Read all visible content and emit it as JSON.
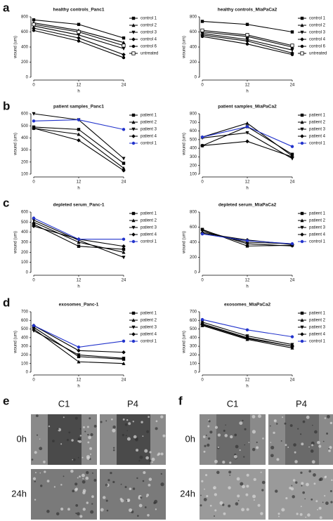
{
  "panel_labels": [
    "a",
    "b",
    "c",
    "d",
    "e",
    "f"
  ],
  "chart_data": [
    {
      "type": "line",
      "title": "healthy controls_Panc1",
      "x_label": "h",
      "y_label": "wound (um)",
      "x": [
        0,
        12,
        24
      ],
      "xlim": [
        0,
        24
      ],
      "xticks": [
        0,
        12,
        24
      ],
      "ylim": [
        0,
        800
      ],
      "yticks": [
        0,
        200,
        400,
        600,
        800
      ],
      "series": [
        {
          "name": "control 1",
          "color": "#000000",
          "values": [
            760,
            700,
            520
          ]
        },
        {
          "name": "control 2",
          "color": "#000000",
          "values": [
            720,
            620,
            460
          ]
        },
        {
          "name": "control 3",
          "color": "#000000",
          "values": [
            680,
            560,
            380
          ]
        },
        {
          "name": "control 4",
          "color": "#000000",
          "values": [
            650,
            520,
            300
          ]
        },
        {
          "name": "control 6",
          "color": "#000000",
          "values": [
            620,
            480,
            260
          ]
        },
        {
          "name": "untreated",
          "color": "#000000",
          "values": [
            700,
            600,
            420
          ]
        }
      ]
    },
    {
      "type": "line",
      "title": "healthy controls_MiaPaCa2",
      "x_label": "h",
      "y_label": "wound (um)",
      "x": [
        0,
        12,
        24
      ],
      "xlim": [
        0,
        24
      ],
      "xticks": [
        0,
        12,
        24
      ],
      "ylim": [
        0,
        800
      ],
      "yticks": [
        0,
        200,
        400,
        600,
        800
      ],
      "series": [
        {
          "name": "control 1",
          "color": "#000000",
          "values": [
            740,
            700,
            600
          ]
        },
        {
          "name": "control 2",
          "color": "#000000",
          "values": [
            600,
            540,
            400
          ]
        },
        {
          "name": "control 3",
          "color": "#000000",
          "values": [
            580,
            500,
            360
          ]
        },
        {
          "name": "control 4",
          "color": "#000000",
          "values": [
            560,
            480,
            320
          ]
        },
        {
          "name": "control 6",
          "color": "#000000",
          "values": [
            540,
            440,
            300
          ]
        },
        {
          "name": "untreated",
          "color": "#000000",
          "values": [
            620,
            560,
            420
          ]
        }
      ]
    },
    {
      "type": "line",
      "title": "patient samples_Panc1",
      "x_label": "h",
      "y_label": "wound (um)",
      "x": [
        0,
        12,
        24
      ],
      "xlim": [
        0,
        24
      ],
      "xticks": [
        0,
        12,
        24
      ],
      "ylim": [
        100,
        600
      ],
      "yticks": [
        100,
        200,
        300,
        400,
        500,
        600
      ],
      "series": [
        {
          "name": "patient 1",
          "color": "#000000",
          "values": [
            490,
            470,
            190
          ]
        },
        {
          "name": "patient 2",
          "color": "#000000",
          "values": [
            480,
            430,
            150
          ]
        },
        {
          "name": "patient 3",
          "color": "#000000",
          "values": [
            600,
            550,
            230
          ]
        },
        {
          "name": "patient 4",
          "color": "#000000",
          "values": [
            480,
            380,
            130
          ]
        },
        {
          "name": "control 1",
          "color": "#2233cc",
          "values": [
            540,
            550,
            470
          ]
        }
      ]
    },
    {
      "type": "line",
      "title": "patient samples_MiaPaCa2",
      "x_label": "h",
      "y_label": "wound (um)",
      "x": [
        0,
        12,
        24
      ],
      "xlim": [
        0,
        24
      ],
      "xticks": [
        0,
        12,
        24
      ],
      "ylim": [
        100,
        800
      ],
      "yticks": [
        100,
        200,
        300,
        400,
        500,
        600,
        700,
        800
      ],
      "series": [
        {
          "name": "patient 1",
          "color": "#000000",
          "values": [
            430,
            650,
            330
          ]
        },
        {
          "name": "patient 2",
          "color": "#000000",
          "values": [
            530,
            690,
            310
          ]
        },
        {
          "name": "patient 3",
          "color": "#000000",
          "values": [
            520,
            580,
            280
          ]
        },
        {
          "name": "patient 4",
          "color": "#000000",
          "values": [
            430,
            480,
            300
          ]
        },
        {
          "name": "control 1",
          "color": "#2233cc",
          "values": [
            530,
            650,
            420
          ]
        }
      ]
    },
    {
      "type": "line",
      "title": "depleted serum_Panc-1",
      "x_label": "h",
      "y_label": "wound (um)",
      "x": [
        0,
        12,
        24
      ],
      "xlim": [
        0,
        24
      ],
      "xticks": [
        0,
        12,
        24
      ],
      "ylim": [
        0,
        600
      ],
      "yticks": [
        0,
        100,
        200,
        300,
        400,
        500,
        600
      ],
      "series": [
        {
          "name": "patient 1",
          "color": "#000000",
          "values": [
            480,
            260,
            230
          ]
        },
        {
          "name": "patient 2",
          "color": "#000000",
          "values": [
            500,
            300,
            200
          ]
        },
        {
          "name": "patient 3",
          "color": "#000000",
          "values": [
            520,
            320,
            150
          ]
        },
        {
          "name": "patient 4",
          "color": "#000000",
          "values": [
            460,
            330,
            260
          ]
        },
        {
          "name": "control 1",
          "color": "#2233cc",
          "values": [
            540,
            330,
            330
          ]
        }
      ]
    },
    {
      "type": "line",
      "title": "depleted serum_MiaPaCa2",
      "x_label": "h",
      "y_label": "wound (um)",
      "x": [
        0,
        12,
        24
      ],
      "xlim": [
        0,
        24
      ],
      "xticks": [
        0,
        12,
        24
      ],
      "ylim": [
        0,
        800
      ],
      "yticks": [
        0,
        200,
        400,
        600,
        800
      ],
      "series": [
        {
          "name": "patient 1",
          "color": "#000000",
          "values": [
            570,
            350,
            360
          ]
        },
        {
          "name": "patient 2",
          "color": "#000000",
          "values": [
            540,
            400,
            380
          ]
        },
        {
          "name": "patient 3",
          "color": "#000000",
          "values": [
            560,
            380,
            350
          ]
        },
        {
          "name": "patient 4",
          "color": "#000000",
          "values": [
            520,
            430,
            370
          ]
        },
        {
          "name": "control 1",
          "color": "#2233cc",
          "values": [
            510,
            420,
            380
          ]
        }
      ]
    },
    {
      "type": "line",
      "title": "exosomes_Panc-1",
      "x_label": "h",
      "y_label": "wound (um)",
      "x": [
        0,
        12,
        24
      ],
      "xlim": [
        0,
        24
      ],
      "xticks": [
        0,
        12,
        24
      ],
      "ylim": [
        0,
        700
      ],
      "yticks": [
        0,
        100,
        200,
        300,
        400,
        500,
        600,
        700
      ],
      "series": [
        {
          "name": "patient 1",
          "color": "#000000",
          "values": [
            520,
            180,
            150
          ]
        },
        {
          "name": "patient 2",
          "color": "#000000",
          "values": [
            500,
            120,
            100
          ]
        },
        {
          "name": "patient 3",
          "color": "#000000",
          "values": [
            480,
            200,
            160
          ]
        },
        {
          "name": "patient 4",
          "color": "#000000",
          "values": [
            540,
            250,
            230
          ]
        },
        {
          "name": "control 1",
          "color": "#2233cc",
          "values": [
            540,
            290,
            360
          ]
        }
      ]
    },
    {
      "type": "line",
      "title": "exosomes_MiaPaCa2",
      "x_label": "h",
      "y_label": "wound (um)",
      "x": [
        0,
        12,
        24
      ],
      "xlim": [
        0,
        24
      ],
      "xticks": [
        0,
        12,
        24
      ],
      "ylim": [
        0,
        700
      ],
      "yticks": [
        0,
        100,
        200,
        300,
        400,
        500,
        600,
        700
      ],
      "series": [
        {
          "name": "patient 1",
          "color": "#000000",
          "values": [
            560,
            400,
            300
          ]
        },
        {
          "name": "patient 2",
          "color": "#000000",
          "values": [
            540,
            380,
            280
          ]
        },
        {
          "name": "patient 3",
          "color": "#000000",
          "values": [
            580,
            420,
            320
          ]
        },
        {
          "name": "patient 4",
          "color": "#000000",
          "values": [
            550,
            390,
            300
          ]
        },
        {
          "name": "control 1",
          "color": "#2233cc",
          "values": [
            610,
            490,
            410
          ]
        }
      ]
    }
  ],
  "micrographs": [
    {
      "columns": [
        "C1",
        "P4"
      ],
      "rows": [
        "0h",
        "24h"
      ]
    },
    {
      "columns": [
        "C1",
        "P4"
      ],
      "rows": [
        "0h",
        "24h"
      ]
    }
  ]
}
